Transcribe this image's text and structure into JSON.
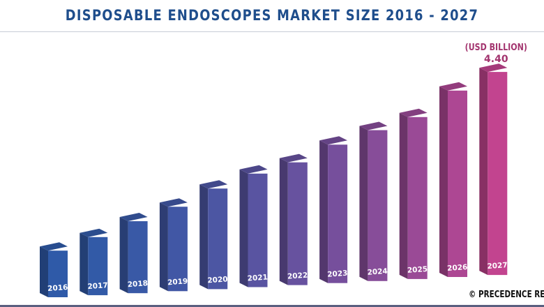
{
  "title": "DISPOSABLE ENDOSCOPES MARKET SIZE 2016 - 2027",
  "credit": "© PRECEDENCE RESI",
  "chart_data": {
    "type": "bar",
    "title": "DISPOSABLE ENDOSCOPES MARKET SIZE 2016 - 2027",
    "unit_label": "(USD BILLION)",
    "categories": [
      "2016",
      "2017",
      "2018",
      "2019",
      "2020",
      "2021",
      "2022",
      "2023",
      "2024",
      "2025",
      "2026",
      "2027"
    ],
    "values": [
      1.01,
      1.26,
      1.56,
      1.83,
      2.18,
      2.46,
      2.66,
      3.0,
      3.27,
      3.51,
      4.04,
      4.4
    ],
    "data_labels": {
      "2027": "4.40"
    },
    "ylim": [
      0,
      4.4
    ],
    "grid": false,
    "colors": {
      "start": "#2f5aa8",
      "end": "#c2448f",
      "unit_label": "#a3356f",
      "value_label": "#a3356f"
    }
  }
}
